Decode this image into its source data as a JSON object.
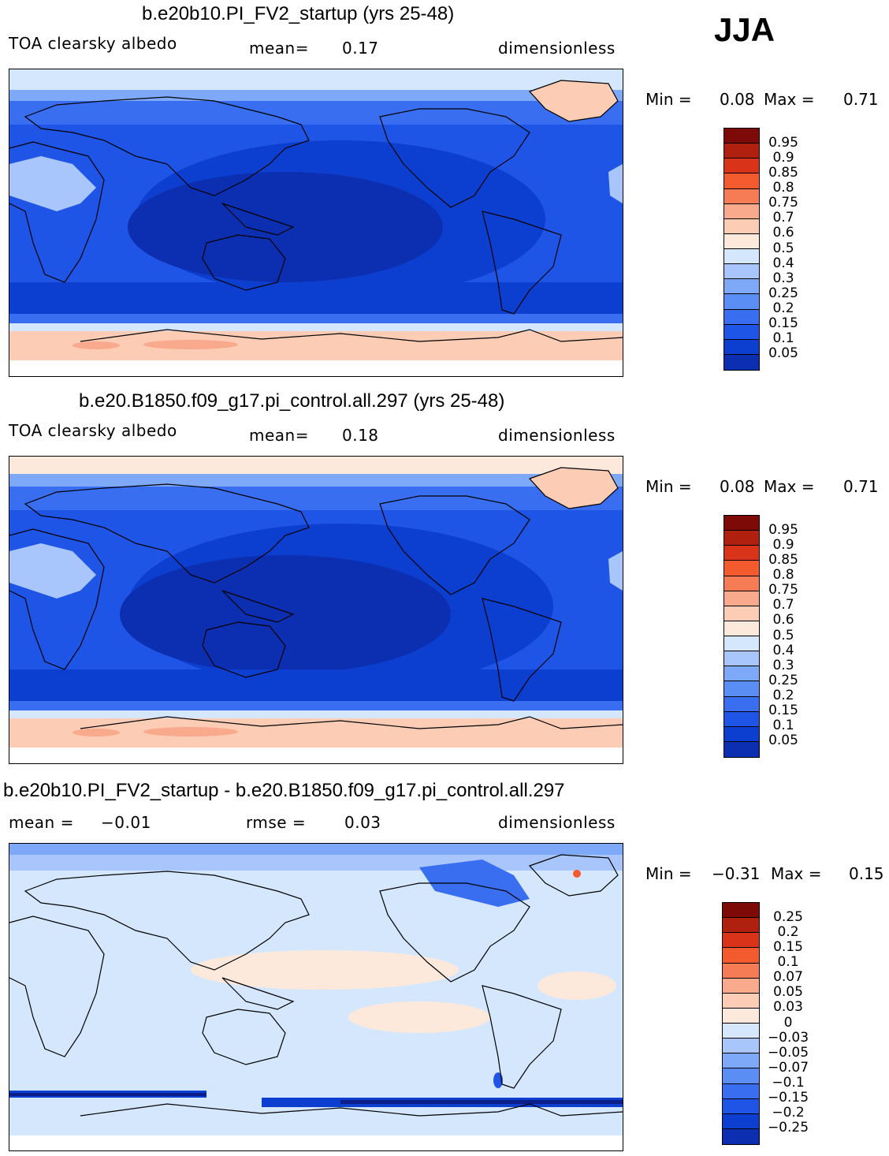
{
  "season": "JJA",
  "colors": {
    "abs": [
      "#0a1f8a",
      "#0b2fb0",
      "#0c3fd0",
      "#1f55e6",
      "#3a6ef0",
      "#5a8ef5",
      "#7ea8f8",
      "#a8c6fb",
      "#d4e7fd",
      "#fde9dc",
      "#fcccb4",
      "#f9a98c",
      "#f67c55",
      "#f35a2e",
      "#d9331a",
      "#b0200e",
      "#7d0a07"
    ],
    "diff": [
      "#0a1f8a",
      "#0b2fb0",
      "#0c3fd0",
      "#1f55e6",
      "#3a6ef0",
      "#5a8ef5",
      "#7ea8f8",
      "#a8c6fb",
      "#d4e7fd",
      "#fde9dc",
      "#fcccb4",
      "#f9a98c",
      "#f67c55",
      "#f35a2e",
      "#d9331a",
      "#b0200e",
      "#7d0a07"
    ]
  },
  "panels": [
    {
      "title": "b.e20b10.PI_FV2_startup (yrs 25-48)",
      "variable": "TOA clearsky albedo",
      "stat1_label": "mean=",
      "stat1_value": "0.17",
      "units": "dimensionless",
      "min_label": "Min =",
      "min_value": "0.08",
      "max_label": "Max =",
      "max_value": "0.71",
      "colorbar_labels": [
        "0.95",
        "0.9",
        "0.85",
        "0.8",
        "0.75",
        "0.7",
        "0.6",
        "0.5",
        "0.4",
        "0.3",
        "0.25",
        "0.2",
        "0.15",
        "0.1",
        "0.05"
      ],
      "type": "abs"
    },
    {
      "title": "b.e20.B1850.f09_g17.pi_control.all.297 (yrs 25-48)",
      "variable": "TOA clearsky albedo",
      "stat1_label": "mean=",
      "stat1_value": "0.18",
      "units": "dimensionless",
      "min_label": "Min =",
      "min_value": "0.08",
      "max_label": "Max =",
      "max_value": "0.71",
      "colorbar_labels": [
        "0.95",
        "0.9",
        "0.85",
        "0.8",
        "0.75",
        "0.7",
        "0.6",
        "0.5",
        "0.4",
        "0.3",
        "0.25",
        "0.2",
        "0.15",
        "0.1",
        "0.05"
      ],
      "type": "abs"
    },
    {
      "title": "b.e20b10.PI_FV2_startup - b.e20.B1850.f09_g17.pi_control.all.297",
      "stat1_label": "mean =",
      "stat1_value": "−0.01",
      "stat2_label": "rmse =",
      "stat2_value": "0.03",
      "units": "dimensionless",
      "min_label": "Min =",
      "min_value": "−0.31",
      "max_label": "Max =",
      "max_value": "0.15",
      "colorbar_labels": [
        "0.25",
        "0.2",
        "0.15",
        "0.1",
        "0.07",
        "0.05",
        "0.03",
        "0",
        "−0.03",
        "−0.05",
        "−0.07",
        "−0.1",
        "−0.15",
        "−0.2",
        "−0.25"
      ],
      "type": "diff"
    }
  ]
}
